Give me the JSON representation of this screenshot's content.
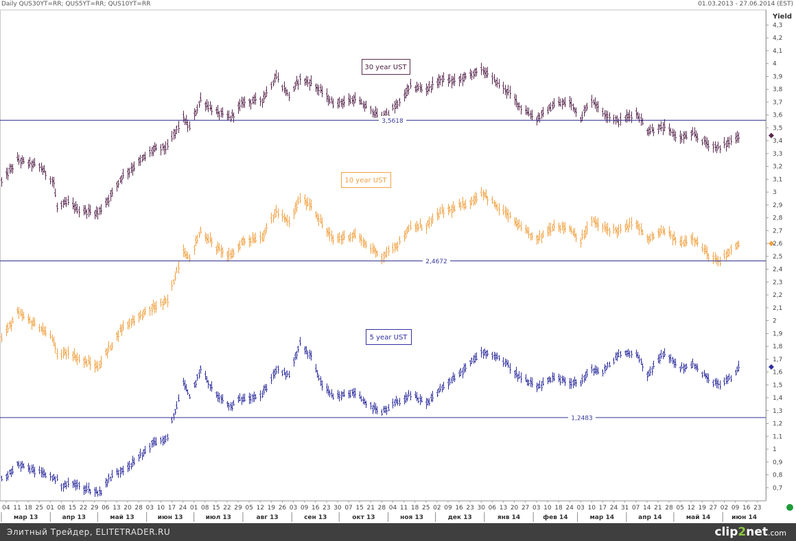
{
  "header": {
    "left": "Daily QUS30YT=RR; QUS5YT=RR; QUS10YT=RR",
    "right": "01.03.2013 - 27.06.2014 (EST)"
  },
  "footer": {
    "text": "Элитный Трейдер, ELITETRADER.RU",
    "logo": {
      "a": "clip",
      "b": "2",
      "c": "net",
      "d": ".com"
    }
  },
  "chart_data": {
    "type": "bar",
    "ylabel": "Yield",
    "ylim": [
      0.6,
      4.42
    ],
    "yticks": [
      0.7,
      0.8,
      0.9,
      1,
      1.1,
      1.2,
      1.3,
      1.4,
      1.5,
      1.6,
      1.7,
      1.8,
      1.9,
      2,
      2.1,
      2.2,
      2.3,
      2.4,
      2.5,
      2.6,
      2.7,
      2.8,
      2.9,
      3,
      3.1,
      3.2,
      3.3,
      3.4,
      3.5,
      3.6,
      3.7,
      3.8,
      3.9,
      4,
      4.1,
      4.2,
      4.3
    ],
    "ytick_labels": [
      "0,7",
      "0,8",
      "0,9",
      "1",
      "1,1",
      "1,2",
      "1,3",
      "1,4",
      "1,5",
      "1,6",
      "1,7",
      "1,8",
      "1,9",
      "2",
      "2,1",
      "2,2",
      "2,3",
      "2,4",
      "2,5",
      "2,6",
      "2,7",
      "2,8",
      "2,9",
      "3",
      "3,1",
      "3,2",
      "3,3",
      "3,4",
      "3,5",
      "3,6",
      "3,7",
      "3,8",
      "3,9",
      "4",
      "4,1",
      "4,2",
      "4,3"
    ],
    "x_range": [
      "2013-03-01",
      "2014-06-27"
    ],
    "xaxis_days": [
      "04",
      "11",
      "18",
      "25",
      "01",
      "08",
      "15",
      "22",
      "29",
      "06",
      "13",
      "20",
      "28",
      "03",
      "10",
      "17",
      "24",
      "01",
      "08",
      "15",
      "22",
      "29",
      "05",
      "12",
      "19",
      "26",
      "03",
      "09",
      "16",
      "23",
      "30",
      "07",
      "15",
      "21",
      "28",
      "04",
      "11",
      "18",
      "25",
      "02",
      "09",
      "16",
      "23",
      "30",
      "06",
      "13",
      "20",
      "27",
      "03",
      "10",
      "18",
      "24",
      "03",
      "10",
      "17",
      "24",
      "31",
      "07",
      "14",
      "21",
      "28",
      "05",
      "12",
      "19",
      "27",
      "02",
      "09",
      "16",
      "23"
    ],
    "xaxis_months": [
      "мар 13",
      "апр 13",
      "май 13",
      "июн 13",
      "июл 13",
      "авг 13",
      "сен 13",
      "окт 13",
      "ноя 13",
      "дек 13",
      "янв 14",
      "фев 14",
      "мар 14",
      "апр 14",
      "май 14",
      "июн 14"
    ],
    "series": [
      {
        "name": "30 year UST",
        "color": "#5a2a50",
        "hline": 3.5618,
        "hline_label": "3,5618",
        "hline_color": "#2f2f8f",
        "last_marker": 3.44,
        "anchors": [
          [
            "2013-03-01",
            3.08
          ],
          [
            "2013-03-11",
            3.25
          ],
          [
            "2013-03-25",
            3.2
          ],
          [
            "2013-04-03",
            3.08
          ],
          [
            "2013-04-05",
            2.88
          ],
          [
            "2013-04-12",
            2.92
          ],
          [
            "2013-04-19",
            2.86
          ],
          [
            "2013-05-01",
            2.84
          ],
          [
            "2013-05-08",
            2.95
          ],
          [
            "2013-05-16",
            3.12
          ],
          [
            "2013-05-24",
            3.2
          ],
          [
            "2013-06-05",
            3.33
          ],
          [
            "2013-06-14",
            3.35
          ],
          [
            "2013-06-24",
            3.58
          ],
          [
            "2013-06-28",
            3.5
          ],
          [
            "2013-07-05",
            3.72
          ],
          [
            "2013-07-15",
            3.62
          ],
          [
            "2013-07-24",
            3.58
          ],
          [
            "2013-08-01",
            3.7
          ],
          [
            "2013-08-13",
            3.72
          ],
          [
            "2013-08-22",
            3.9
          ],
          [
            "2013-08-30",
            3.75
          ],
          [
            "2013-09-06",
            3.88
          ],
          [
            "2013-09-13",
            3.85
          ],
          [
            "2013-09-20",
            3.78
          ],
          [
            "2013-09-27",
            3.69
          ],
          [
            "2013-10-11",
            3.72
          ],
          [
            "2013-10-22",
            3.63
          ],
          [
            "2013-10-28",
            3.58
          ],
          [
            "2013-11-07",
            3.68
          ],
          [
            "2013-11-15",
            3.82
          ],
          [
            "2013-11-25",
            3.8
          ],
          [
            "2013-12-05",
            3.88
          ],
          [
            "2013-12-13",
            3.86
          ],
          [
            "2013-12-24",
            3.92
          ],
          [
            "2013-12-31",
            3.95
          ],
          [
            "2014-01-09",
            3.85
          ],
          [
            "2014-01-16",
            3.78
          ],
          [
            "2014-01-24",
            3.66
          ],
          [
            "2014-02-03",
            3.57
          ],
          [
            "2014-02-14",
            3.68
          ],
          [
            "2014-02-24",
            3.7
          ],
          [
            "2014-03-03",
            3.58
          ],
          [
            "2014-03-10",
            3.72
          ],
          [
            "2014-03-17",
            3.62
          ],
          [
            "2014-03-27",
            3.55
          ],
          [
            "2014-04-07",
            3.62
          ],
          [
            "2014-04-14",
            3.48
          ],
          [
            "2014-04-25",
            3.5
          ],
          [
            "2014-05-05",
            3.42
          ],
          [
            "2014-05-13",
            3.45
          ],
          [
            "2014-05-22",
            3.38
          ],
          [
            "2014-05-30",
            3.34
          ],
          [
            "2014-06-06",
            3.4
          ],
          [
            "2014-06-11",
            3.44
          ]
        ]
      },
      {
        "name": "10 year UST",
        "color": "#f0a040",
        "hline": 2.4672,
        "hline_label": "2,4672",
        "hline_color": "#2f2f8f",
        "last_marker": 2.6,
        "anchors": [
          [
            "2013-03-01",
            1.86
          ],
          [
            "2013-03-11",
            2.06
          ],
          [
            "2013-03-25",
            1.95
          ],
          [
            "2013-04-03",
            1.85
          ],
          [
            "2013-04-05",
            1.72
          ],
          [
            "2013-04-12",
            1.76
          ],
          [
            "2013-04-19",
            1.7
          ],
          [
            "2013-05-01",
            1.64
          ],
          [
            "2013-05-08",
            1.78
          ],
          [
            "2013-05-16",
            1.94
          ],
          [
            "2013-05-24",
            2.01
          ],
          [
            "2013-06-05",
            2.1
          ],
          [
            "2013-06-14",
            2.15
          ],
          [
            "2013-06-24",
            2.55
          ],
          [
            "2013-06-28",
            2.48
          ],
          [
            "2013-07-05",
            2.7
          ],
          [
            "2013-07-15",
            2.57
          ],
          [
            "2013-07-24",
            2.5
          ],
          [
            "2013-08-01",
            2.62
          ],
          [
            "2013-08-13",
            2.65
          ],
          [
            "2013-08-22",
            2.85
          ],
          [
            "2013-08-30",
            2.76
          ],
          [
            "2013-09-06",
            2.95
          ],
          [
            "2013-09-13",
            2.9
          ],
          [
            "2013-09-20",
            2.75
          ],
          [
            "2013-09-27",
            2.63
          ],
          [
            "2013-10-11",
            2.67
          ],
          [
            "2013-10-22",
            2.55
          ],
          [
            "2013-10-28",
            2.5
          ],
          [
            "2013-11-07",
            2.6
          ],
          [
            "2013-11-15",
            2.72
          ],
          [
            "2013-11-25",
            2.74
          ],
          [
            "2013-12-05",
            2.85
          ],
          [
            "2013-12-13",
            2.87
          ],
          [
            "2013-12-24",
            2.93
          ],
          [
            "2013-12-31",
            3.0
          ],
          [
            "2014-01-09",
            2.88
          ],
          [
            "2014-01-16",
            2.82
          ],
          [
            "2014-01-24",
            2.72
          ],
          [
            "2014-02-03",
            2.63
          ],
          [
            "2014-02-14",
            2.74
          ],
          [
            "2014-02-24",
            2.72
          ],
          [
            "2014-03-03",
            2.62
          ],
          [
            "2014-03-10",
            2.78
          ],
          [
            "2014-03-17",
            2.72
          ],
          [
            "2014-03-27",
            2.7
          ],
          [
            "2014-04-07",
            2.76
          ],
          [
            "2014-04-14",
            2.63
          ],
          [
            "2014-04-25",
            2.7
          ],
          [
            "2014-05-05",
            2.6
          ],
          [
            "2014-05-13",
            2.65
          ],
          [
            "2014-05-22",
            2.52
          ],
          [
            "2014-05-30",
            2.45
          ],
          [
            "2014-06-06",
            2.55
          ],
          [
            "2014-06-11",
            2.6
          ]
        ]
      },
      {
        "name": "5 year UST",
        "color": "#2f2f9f",
        "hline": 1.2483,
        "hline_label": "1,2483",
        "hline_color": "#2f2f8f",
        "last_marker": 1.64,
        "anchors": [
          [
            "2013-03-01",
            0.76
          ],
          [
            "2013-03-11",
            0.88
          ],
          [
            "2013-03-25",
            0.82
          ],
          [
            "2013-04-03",
            0.78
          ],
          [
            "2013-04-08",
            0.72
          ],
          [
            "2013-04-15",
            0.73
          ],
          [
            "2013-04-22",
            0.7
          ],
          [
            "2013-05-02",
            0.66
          ],
          [
            "2013-05-08",
            0.77
          ],
          [
            "2013-05-16",
            0.84
          ],
          [
            "2013-05-24",
            0.9
          ],
          [
            "2013-06-05",
            1.05
          ],
          [
            "2013-06-14",
            1.08
          ],
          [
            "2013-06-24",
            1.52
          ],
          [
            "2013-06-28",
            1.4
          ],
          [
            "2013-07-05",
            1.62
          ],
          [
            "2013-07-15",
            1.42
          ],
          [
            "2013-07-24",
            1.33
          ],
          [
            "2013-08-01",
            1.4
          ],
          [
            "2013-08-13",
            1.42
          ],
          [
            "2013-08-22",
            1.62
          ],
          [
            "2013-08-30",
            1.57
          ],
          [
            "2013-09-06",
            1.82
          ],
          [
            "2013-09-13",
            1.72
          ],
          [
            "2013-09-20",
            1.5
          ],
          [
            "2013-09-27",
            1.4
          ],
          [
            "2013-10-11",
            1.44
          ],
          [
            "2013-10-22",
            1.32
          ],
          [
            "2013-10-28",
            1.28
          ],
          [
            "2013-11-07",
            1.37
          ],
          [
            "2013-11-15",
            1.42
          ],
          [
            "2013-11-25",
            1.35
          ],
          [
            "2013-12-05",
            1.48
          ],
          [
            "2013-12-13",
            1.55
          ],
          [
            "2013-12-24",
            1.68
          ],
          [
            "2013-12-31",
            1.76
          ],
          [
            "2014-01-09",
            1.72
          ],
          [
            "2014-01-16",
            1.65
          ],
          [
            "2014-01-24",
            1.55
          ],
          [
            "2014-02-03",
            1.48
          ],
          [
            "2014-02-14",
            1.55
          ],
          [
            "2014-02-24",
            1.52
          ],
          [
            "2014-03-03",
            1.52
          ],
          [
            "2014-03-10",
            1.62
          ],
          [
            "2014-03-17",
            1.6
          ],
          [
            "2014-03-27",
            1.74
          ],
          [
            "2014-04-07",
            1.75
          ],
          [
            "2014-04-14",
            1.58
          ],
          [
            "2014-04-25",
            1.75
          ],
          [
            "2014-05-05",
            1.63
          ],
          [
            "2014-05-13",
            1.66
          ],
          [
            "2014-05-22",
            1.55
          ],
          [
            "2014-05-30",
            1.5
          ],
          [
            "2014-06-06",
            1.55
          ],
          [
            "2014-06-11",
            1.64
          ]
        ]
      }
    ]
  }
}
